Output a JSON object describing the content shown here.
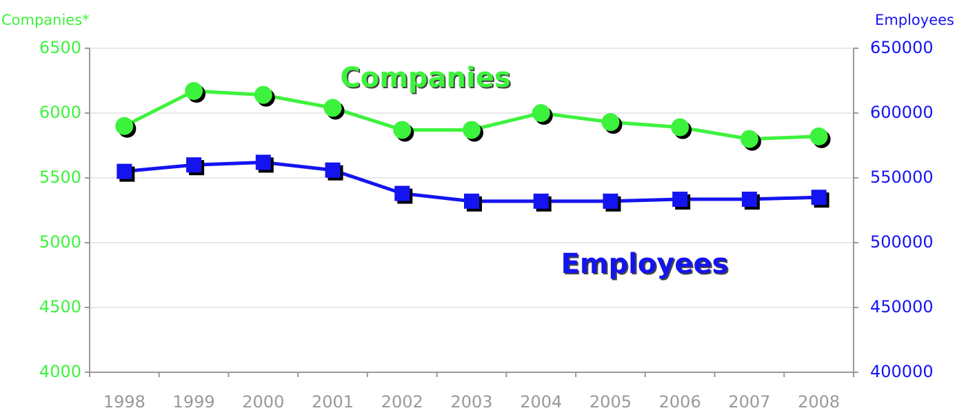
{
  "chart_data": {
    "type": "line",
    "y_label": "Companies*",
    "y2_label": "Employees",
    "categories": [
      "1998",
      "1999",
      "2000",
      "2001",
      "2002",
      "2003",
      "2004",
      "2005",
      "2006",
      "2007",
      "2008"
    ],
    "series": [
      {
        "name": "Companies",
        "color": "#3df23d",
        "marker": "circle",
        "values": [
          5900,
          6170,
          6140,
          6040,
          5870,
          5870,
          6000,
          5930,
          5890,
          5800,
          5820
        ]
      },
      {
        "name": "Employees",
        "color": "#1414f0",
        "marker": "square",
        "axis": "y2",
        "values": [
          555000,
          560000,
          562000,
          556000,
          538000,
          532000,
          532000,
          532000,
          533500,
          533500,
          535000
        ]
      }
    ],
    "ylim": [
      4000,
      6500
    ],
    "yticks": [
      4000,
      4500,
      5000,
      5500,
      6000,
      6500
    ],
    "y2lim": [
      400000,
      650000
    ],
    "y2ticks": [
      400000,
      450000,
      500000,
      550000,
      600000,
      650000
    ],
    "grid": true,
    "legend": false,
    "annotations": [
      "Companies",
      "Employees"
    ]
  }
}
